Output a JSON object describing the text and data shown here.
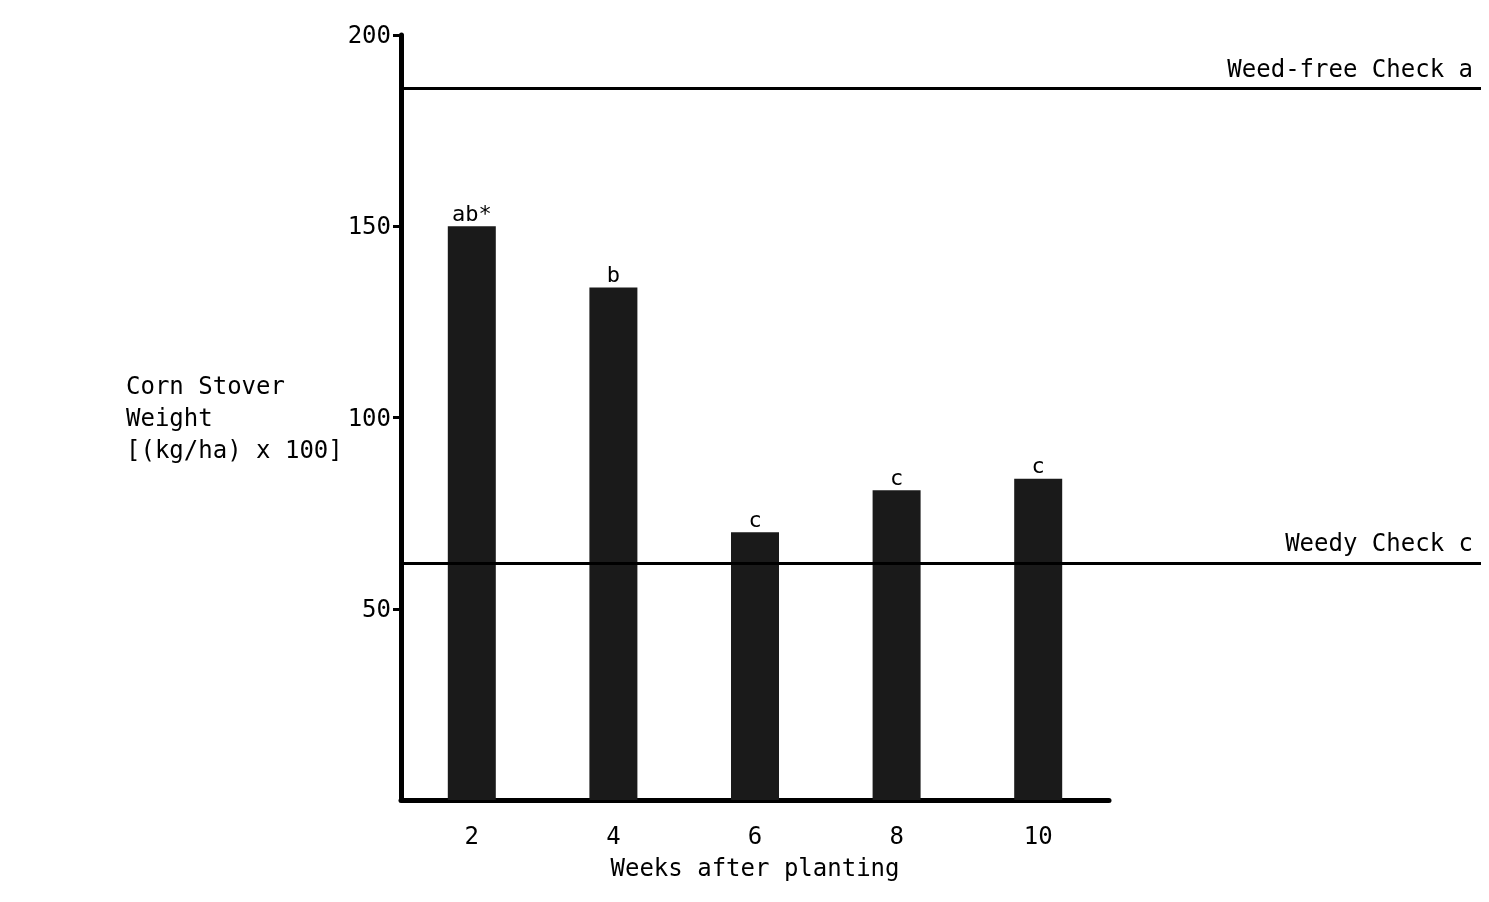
{
  "chart_data": {
    "type": "bar",
    "xlabel": "Weeks after planting",
    "ylabel": "Corn Stover\nWeight\n[(kg/ha) x 100]",
    "categories": [
      "2",
      "4",
      "6",
      "8",
      "10"
    ],
    "values": [
      150,
      134,
      70,
      81,
      84
    ],
    "value_labels": [
      "ab*",
      "b",
      "c",
      "c",
      "c"
    ],
    "color": "#1a1a1a",
    "ylim": [
      0,
      200
    ],
    "yticks": [
      50,
      100,
      150,
      200
    ],
    "ref_lines": [
      {
        "axis": "y",
        "value": 186,
        "label": "Weed-free Check a",
        "color": "#000000"
      },
      {
        "axis": "y",
        "value": 62,
        "label": "Weedy Check c",
        "color": "#000000"
      }
    ],
    "grid": false
  }
}
